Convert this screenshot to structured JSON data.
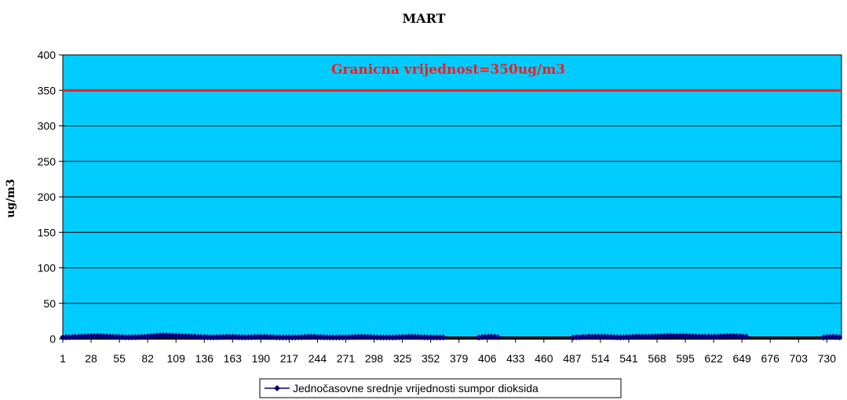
{
  "chart_data": {
    "type": "line",
    "title": "MART",
    "ylabel": "ug/m3",
    "xlabel": "",
    "ylim": [
      0,
      400
    ],
    "yticks": [
      "0",
      "50",
      "100",
      "150",
      "200",
      "250",
      "300",
      "350",
      "400"
    ],
    "xlim": [
      1,
      744
    ],
    "xticks": [
      "1",
      "28",
      "55",
      "82",
      "109",
      "136",
      "163",
      "190",
      "217",
      "244",
      "271",
      "298",
      "325",
      "352",
      "379",
      "406",
      "433",
      "460",
      "487",
      "514",
      "541",
      "568",
      "595",
      "622",
      "649",
      "676",
      "703",
      "730"
    ],
    "grid": true,
    "plot_background": "#00ccff",
    "limit_line": {
      "value": 350,
      "label": "Granicna vrijednost=350ug/m3",
      "color": "#ff1a1a"
    },
    "series": [
      {
        "name": "Jednočasovne srednje vrijednosti sumpor dioksida",
        "color": "#000080",
        "segments": [
          {
            "x_start": 1,
            "x_end": 365,
            "values": [
              2,
              3,
              4,
              3,
              2,
              3,
              5,
              4,
              3,
              2,
              3,
              2,
              3,
              2,
              2,
              3,
              2,
              2,
              3,
              2,
              2,
              3,
              2,
              2
            ]
          },
          {
            "x_start": 398,
            "x_end": 418,
            "values": [
              2,
              3,
              3,
              2
            ]
          },
          {
            "x_start": 488,
            "x_end": 653,
            "values": [
              2,
              3,
              3,
              2,
              3,
              3,
              4,
              4,
              3,
              3,
              4,
              3
            ]
          },
          {
            "x_start": 727,
            "x_end": 744,
            "values": [
              2,
              3,
              2
            ]
          }
        ]
      }
    ],
    "legend_position": "bottom"
  }
}
